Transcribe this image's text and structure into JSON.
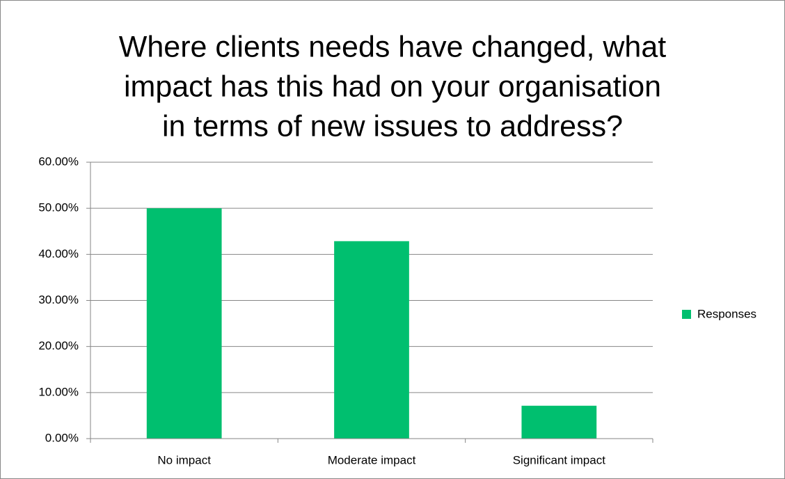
{
  "chart_data": {
    "type": "bar",
    "title": [
      "Where clients needs have changed, what",
      "impact has this had on your organisation",
      "in terms of new issues to address?"
    ],
    "categories": [
      "No impact",
      "Moderate impact",
      "Significant impact"
    ],
    "series": [
      {
        "name": "Responses",
        "color": "#00bf6f",
        "values": [
          50,
          42.86,
          7.14
        ]
      }
    ],
    "ylim": [
      0,
      60
    ],
    "yticks": [
      {
        "value": 0,
        "label": "0.00%"
      },
      {
        "value": 10,
        "label": "10.00%"
      },
      {
        "value": 20,
        "label": "20.00%"
      },
      {
        "value": 30,
        "label": "30.00%"
      },
      {
        "value": 40,
        "label": "40.00%"
      },
      {
        "value": 50,
        "label": "50.00%"
      },
      {
        "value": 60,
        "label": "60.00%"
      }
    ],
    "grid": true,
    "legend": "right"
  }
}
